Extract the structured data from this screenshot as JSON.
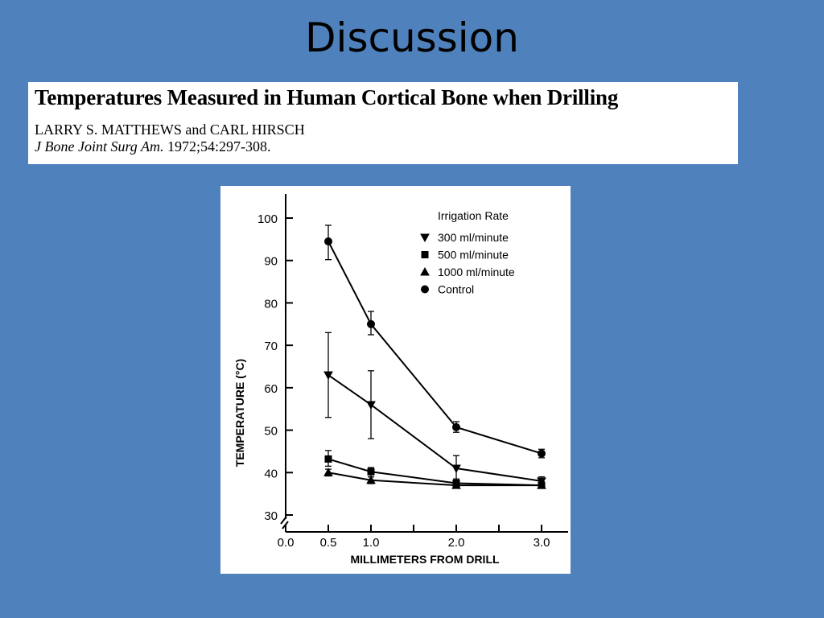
{
  "slide": {
    "title": "Discussion"
  },
  "citation": {
    "paper_title": "Temperatures Measured in Human Cortical Bone when Drilling",
    "authors": "LARRY S. MATTHEWS and CARL HIRSCH",
    "journal": "J Bone Joint Surg Am.",
    "volume_pages": "1972;54:297-308."
  },
  "chart_data": {
    "type": "line",
    "title": "",
    "xlabel": "MILLIMETERS FROM DRILL",
    "ylabel": "TEMPERATURE (°C)",
    "xlim": [
      0,
      3.0
    ],
    "ylim": [
      30,
      100
    ],
    "x_tick_labels": [
      "0.0",
      "0.5",
      "1.0",
      "2.0",
      "3.0"
    ],
    "y_tick_labels": [
      "30",
      "40",
      "50",
      "60",
      "70",
      "80",
      "90",
      "100"
    ],
    "axis_break": true,
    "legend_title": "Irrigation Rate",
    "legend_placement": "top-right",
    "x": [
      0.5,
      1.0,
      2.0,
      3.0
    ],
    "series": [
      {
        "name": "Control",
        "marker": "circle",
        "values": [
          94.5,
          75.0,
          50.7,
          44.5
        ],
        "error_low": [
          90.2,
          72.5,
          49.5,
          43.5
        ],
        "error_high": [
          98.3,
          78.0,
          52.0,
          45.5
        ]
      },
      {
        "name": "300 ml/minute",
        "marker": "triangle-down",
        "values": [
          63.0,
          56.0,
          41.0,
          38.0
        ],
        "error_low": [
          53.0,
          48.0,
          38.0,
          37.0
        ],
        "error_high": [
          73.0,
          64.0,
          44.0,
          39.0
        ]
      },
      {
        "name": "500 ml/minute",
        "marker": "square",
        "values": [
          43.2,
          40.2,
          37.5,
          37.0
        ],
        "error_low": [
          41.5,
          39.0,
          36.5,
          36.3
        ],
        "error_high": [
          45.2,
          41.2,
          38.5,
          37.8
        ]
      },
      {
        "name": "1000 ml/minute",
        "marker": "triangle-up",
        "values": [
          40.0,
          38.2,
          37.0,
          37.0
        ],
        "error_low": [
          39.2,
          37.4,
          36.5,
          36.4
        ],
        "error_high": [
          40.8,
          39.0,
          37.5,
          37.6
        ]
      }
    ]
  }
}
